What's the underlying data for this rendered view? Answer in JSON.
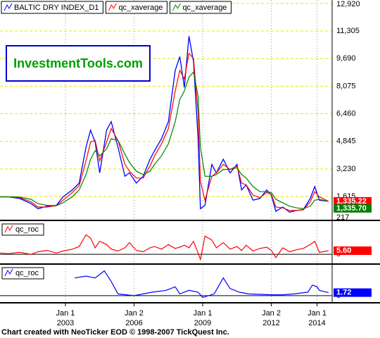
{
  "chart_data": [
    {
      "type": "line",
      "grid": true,
      "grid_color": "#e8e800",
      "xlim": [
        2000.14,
        2014.66
      ],
      "xticks": [
        {
          "value": 2003,
          "label": [
            "Jan 1",
            "2003"
          ]
        },
        {
          "value": 2006,
          "label": [
            "Jan 2",
            "2006"
          ]
        },
        {
          "value": 2009,
          "label": [
            "Jan 1",
            "2009"
          ]
        },
        {
          "value": 2012,
          "label": [
            "Jan 2",
            "2012"
          ]
        },
        {
          "value": 2014,
          "label": [
            "Jan 1",
            "2014"
          ]
        }
      ],
      "ylim": [
        217,
        13120
      ],
      "yticks": [
        217,
        {
          "value": 1615,
          "label": "1,615"
        },
        {
          "value": 3230,
          "label": "3,230"
        },
        {
          "value": 4845,
          "label": "4,845"
        },
        {
          "value": 6460,
          "label": "6,460"
        },
        {
          "value": 8075,
          "label": "8,075"
        },
        {
          "value": 9690,
          "label": "9,690"
        },
        {
          "value": 11305,
          "label": "11,305"
        },
        {
          "value": 12920,
          "label": "12,920"
        }
      ],
      "x": [
        2000.14,
        2000.5,
        2001.0,
        2001.5,
        2001.8,
        2002.2,
        2002.6,
        2002.9,
        2003.3,
        2003.6,
        2003.9,
        2004.1,
        2004.3,
        2004.5,
        2004.8,
        2005.0,
        2005.3,
        2005.6,
        2005.8,
        2006.1,
        2006.4,
        2006.7,
        2006.9,
        2007.2,
        2007.5,
        2007.8,
        2008.0,
        2008.2,
        2008.4,
        2008.6,
        2008.8,
        2008.9,
        2009.1,
        2009.4,
        2009.6,
        2009.9,
        2010.2,
        2010.5,
        2010.7,
        2010.9,
        2011.2,
        2011.5,
        2011.8,
        2012.0,
        2012.2,
        2012.5,
        2012.8,
        2013.1,
        2013.4,
        2013.7,
        2013.9,
        2014.1,
        2014.5
      ],
      "series": [
        {
          "name": "BALTIC DRY INDEX_D1",
          "color": "#0000ff",
          "values": [
            1600,
            1600,
            1500,
            1200,
            900,
            1050,
            1100,
            1600,
            2000,
            2400,
            4500,
            5500,
            4800,
            3000,
            5500,
            6000,
            4500,
            2800,
            3000,
            2400,
            2800,
            3800,
            4300,
            5000,
            6000,
            9000,
            9800,
            8000,
            11000,
            9500,
            5000,
            900,
            1100,
            3500,
            3000,
            3800,
            3000,
            3500,
            2000,
            2300,
            1400,
            1500,
            2000,
            1700,
            750,
            1000,
            700,
            800,
            850,
            1500,
            2200,
            1400,
            1335
          ]
        },
        {
          "name": "qc_xaverage",
          "color": "#ff0000",
          "show_last": true,
          "values": [
            1600,
            1600,
            1550,
            1300,
            1000,
            1000,
            1080,
            1400,
            1850,
            2250,
            3700,
            4800,
            4900,
            3700,
            4800,
            5600,
            4900,
            3500,
            3100,
            2700,
            2700,
            3400,
            4000,
            4700,
            5600,
            7800,
            9000,
            8500,
            10000,
            9700,
            6500,
            2500,
            1400,
            2800,
            3000,
            3500,
            3200,
            3400,
            2400,
            2300,
            1700,
            1550,
            1850,
            1750,
            1000,
            950,
            800,
            800,
            830,
            1300,
            1900,
            1600,
            1335.22
          ],
          "value_labels": [
            null,
            null,
            null,
            null,
            null,
            null,
            null,
            null,
            null,
            null,
            null,
            null,
            null,
            null,
            null,
            null,
            null,
            null,
            null,
            null,
            null,
            null,
            null,
            null,
            null,
            null,
            null,
            null,
            null,
            null,
            null,
            null,
            null,
            null,
            null,
            null,
            null,
            null,
            null,
            null,
            null,
            null,
            null,
            null,
            null,
            null,
            null,
            null,
            null,
            null,
            null,
            null,
            "1,335.22"
          ]
        },
        {
          "name": "qc_xaverage",
          "color": "#008000",
          "show_last": true,
          "values": [
            1600,
            1600,
            1580,
            1450,
            1200,
            1100,
            1080,
            1250,
            1600,
            2000,
            2900,
            3800,
            4300,
            4000,
            4400,
            5000,
            4900,
            4100,
            3600,
            3100,
            2900,
            3100,
            3500,
            4000,
            4700,
            6000,
            7300,
            7800,
            8600,
            8900,
            7500,
            4500,
            2800,
            2800,
            2900,
            3200,
            3200,
            3300,
            2900,
            2700,
            2200,
            1900,
            1900,
            1850,
            1450,
            1250,
            1050,
            950,
            900,
            1050,
            1400,
            1450,
            1335.7
          ],
          "value_labels": [
            null,
            null,
            null,
            null,
            null,
            null,
            null,
            null,
            null,
            null,
            null,
            null,
            null,
            null,
            null,
            null,
            null,
            null,
            null,
            null,
            null,
            null,
            null,
            null,
            null,
            null,
            null,
            null,
            null,
            null,
            null,
            null,
            null,
            null,
            null,
            null,
            null,
            null,
            null,
            null,
            null,
            null,
            null,
            null,
            null,
            null,
            null,
            null,
            null,
            null,
            null,
            null,
            "1,335.70"
          ]
        }
      ]
    },
    {
      "type": "line",
      "grid": true,
      "grid_color": "#000000",
      "xlim": [
        2000.14,
        2014.66
      ],
      "ylim": [
        -15,
        50
      ],
      "yticks": [
        0
      ],
      "x": [
        2000.14,
        2000.5,
        2001.0,
        2001.5,
        2001.8,
        2002.2,
        2002.6,
        2002.9,
        2003.3,
        2003.6,
        2003.9,
        2004.1,
        2004.3,
        2004.5,
        2004.8,
        2005.0,
        2005.3,
        2005.6,
        2005.8,
        2006.1,
        2006.4,
        2006.7,
        2006.9,
        2007.2,
        2007.5,
        2007.8,
        2008.0,
        2008.2,
        2008.4,
        2008.6,
        2008.8,
        2008.9,
        2009.1,
        2009.4,
        2009.6,
        2009.9,
        2010.2,
        2010.5,
        2010.7,
        2010.9,
        2011.2,
        2011.5,
        2011.8,
        2012.0,
        2012.2,
        2012.5,
        2012.8,
        2013.1,
        2013.4,
        2013.7,
        2013.9,
        2014.1,
        2014.5
      ],
      "series": [
        {
          "name": "qc_roc",
          "color": "#ff0000",
          "show_last": true,
          "values": [
            2,
            1,
            3,
            0,
            4,
            6,
            2,
            5,
            8,
            12,
            30,
            25,
            10,
            20,
            15,
            8,
            5,
            10,
            18,
            6,
            4,
            10,
            12,
            8,
            15,
            9,
            11,
            14,
            10,
            20,
            2,
            -8,
            28,
            22,
            10,
            18,
            8,
            12,
            6,
            14,
            5,
            9,
            11,
            6,
            -5,
            10,
            4,
            7,
            9,
            15,
            20,
            3,
            5.6
          ],
          "value_labels": [
            null,
            null,
            null,
            null,
            null,
            null,
            null,
            null,
            null,
            null,
            null,
            null,
            null,
            null,
            null,
            null,
            null,
            null,
            null,
            null,
            null,
            null,
            null,
            null,
            null,
            null,
            null,
            null,
            null,
            null,
            null,
            null,
            null,
            null,
            null,
            null,
            null,
            null,
            null,
            null,
            null,
            null,
            null,
            null,
            null,
            null,
            null,
            null,
            null,
            null,
            null,
            null,
            "5.60"
          ]
        }
      ]
    },
    {
      "type": "line",
      "grid": true,
      "grid_color": "#000000",
      "xlim": [
        2000.14,
        2014.66
      ],
      "ylim": [
        -4,
        17
      ],
      "yticks": [
        0
      ],
      "x": [
        2003.4,
        2003.9,
        2004.3,
        2004.7,
        2005.0,
        2005.3,
        2006.0,
        2006.8,
        2007.4,
        2007.8,
        2008.0,
        2008.4,
        2008.8,
        2009.0,
        2009.5,
        2009.9,
        2010.2,
        2010.6,
        2011.0,
        2012.0,
        2012.5,
        2013.0,
        2013.6,
        2013.8,
        2014.0,
        2014.1,
        2014.5
      ],
      "series": [
        {
          "name": "qc_roc",
          "color": "#0000ff",
          "show_last": true,
          "values": [
            10,
            11,
            10,
            14,
            8,
            1,
            0,
            2,
            3,
            5,
            1,
            3,
            2,
            -1,
            1,
            10,
            4,
            2,
            1,
            0.5,
            0.5,
            1,
            2,
            6,
            5,
            3,
            1.72
          ]
        }
      ]
    }
  ],
  "watermark": "InvestmentTools.com",
  "footer": "Chart created with NeoTicker EOD © 1998-2007 TickQuest Inc."
}
